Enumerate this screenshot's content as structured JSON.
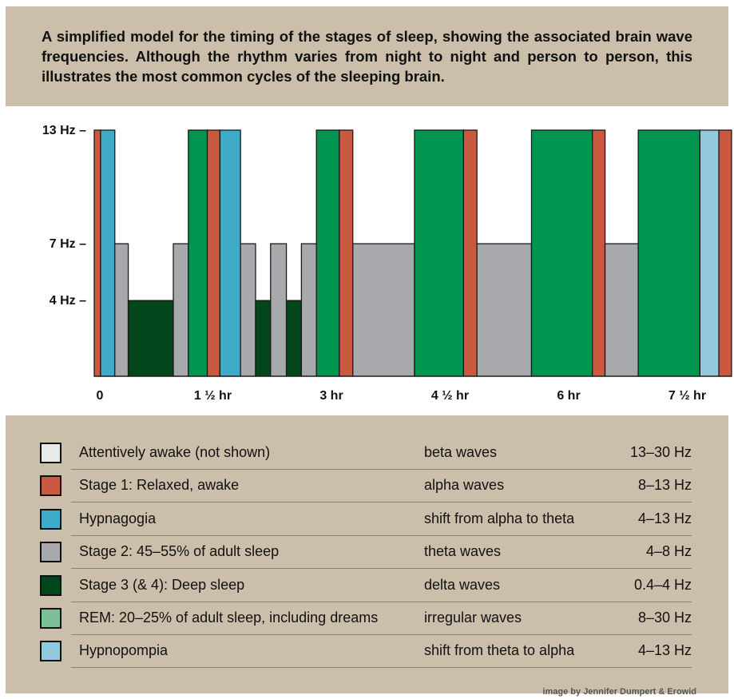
{
  "caption": "A simplified model for the timing of the stages of sleep, showing the associated brain wave frequencies. Although the rhythm varies from night to night and person to person, this illustrates the most common cycles of the sleeping brain.",
  "colors": {
    "awake": "#e8eaea",
    "stage1": "#c95a3f",
    "hypnagogia": "#3fabc9",
    "stage2": "#a8a9ac",
    "stage3": "#02471c",
    "rem": "#00944e",
    "rem_legend": "#7dbf97",
    "hypnopompia": "#92c9dc"
  },
  "chart_data": {
    "type": "bar",
    "y_ticks": [
      {
        "value": 13,
        "label": "13 Hz –"
      },
      {
        "value": 7,
        "label": "7 Hz –"
      },
      {
        "value": 4,
        "label": "4 Hz –"
      }
    ],
    "x_ticks": [
      {
        "hours": 0,
        "label": "0"
      },
      {
        "hours": 1.5,
        "label": "1 ½ hr"
      },
      {
        "hours": 3,
        "label": "3 hr"
      },
      {
        "hours": 4.5,
        "label": "4 ½ hr"
      },
      {
        "hours": 6,
        "label": "6 hr"
      },
      {
        "hours": 7.5,
        "label": "7 ½ hr"
      }
    ],
    "xlim": [
      0,
      7.5
    ],
    "ylim": [
      0,
      13
    ],
    "segments": [
      {
        "stage": "stage1",
        "start": 0.0,
        "end": 0.08,
        "hz": 13
      },
      {
        "stage": "hypnagogia",
        "start": 0.08,
        "end": 0.26,
        "hz": 13
      },
      {
        "stage": "stage2",
        "start": 0.26,
        "end": 0.43,
        "hz": 7
      },
      {
        "stage": "stage3",
        "start": 0.43,
        "end": 1.0,
        "hz": 4
      },
      {
        "stage": "stage2",
        "start": 1.0,
        "end": 1.19,
        "hz": 7
      },
      {
        "stage": "rem",
        "start": 1.19,
        "end": 1.43,
        "hz": 13
      },
      {
        "stage": "stage1",
        "start": 1.43,
        "end": 1.59,
        "hz": 13
      },
      {
        "stage": "hypnagogia",
        "start": 1.59,
        "end": 1.85,
        "hz": 13
      },
      {
        "stage": "stage2",
        "start": 1.85,
        "end": 2.04,
        "hz": 7
      },
      {
        "stage": "stage3",
        "start": 2.04,
        "end": 2.23,
        "hz": 4
      },
      {
        "stage": "stage2",
        "start": 2.23,
        "end": 2.43,
        "hz": 7
      },
      {
        "stage": "stage3",
        "start": 2.43,
        "end": 2.62,
        "hz": 4
      },
      {
        "stage": "stage2",
        "start": 2.62,
        "end": 2.81,
        "hz": 7
      },
      {
        "stage": "rem",
        "start": 2.81,
        "end": 3.1,
        "hz": 13
      },
      {
        "stage": "stage1",
        "start": 3.1,
        "end": 3.27,
        "hz": 13
      },
      {
        "stage": "stage2",
        "start": 3.27,
        "end": 4.05,
        "hz": 7
      },
      {
        "stage": "rem",
        "start": 4.05,
        "end": 4.67,
        "hz": 13
      },
      {
        "stage": "stage1",
        "start": 4.67,
        "end": 4.84,
        "hz": 13
      },
      {
        "stage": "stage2",
        "start": 4.84,
        "end": 5.53,
        "hz": 7
      },
      {
        "stage": "rem",
        "start": 5.53,
        "end": 6.3,
        "hz": 13
      },
      {
        "stage": "stage1",
        "start": 6.3,
        "end": 6.46,
        "hz": 13
      },
      {
        "stage": "stage2",
        "start": 6.46,
        "end": 6.88,
        "hz": 7
      },
      {
        "stage": "rem",
        "start": 6.88,
        "end": 7.66,
        "hz": 13
      },
      {
        "stage": "hypnopompia",
        "start": 7.66,
        "end": 7.9,
        "hz": 13
      },
      {
        "stage": "stage1",
        "start": 7.9,
        "end": 8.06,
        "hz": 13
      }
    ]
  },
  "legend": [
    {
      "color_key": "awake",
      "label": "Attentively awake (not shown)",
      "wave": "beta waves",
      "range": "13–30 Hz"
    },
    {
      "color_key": "stage1",
      "label": "Stage 1: Relaxed, awake",
      "wave": "alpha waves",
      "range": "8–13 Hz"
    },
    {
      "color_key": "hypnagogia",
      "label": "Hypnagogia",
      "wave": "shift from alpha to theta",
      "range": "4–13 Hz"
    },
    {
      "color_key": "stage2",
      "label": "Stage 2: 45–55% of adult sleep",
      "wave": "theta waves",
      "range": "4–8 Hz"
    },
    {
      "color_key": "stage3",
      "label": "Stage 3 (& 4): Deep sleep",
      "wave": "delta waves",
      "range": "0.4–4 Hz"
    },
    {
      "color_key": "rem_legend",
      "label": "REM: 20–25% of adult sleep, including dreams",
      "wave": "irregular waves",
      "range": "8–30 Hz"
    },
    {
      "color_key": "hypnopompia",
      "label": "Hypnopompia",
      "wave": "shift from theta to alpha",
      "range": "4–13 Hz"
    }
  ],
  "credit": "image by Jennifer Dumpert & Erowid"
}
